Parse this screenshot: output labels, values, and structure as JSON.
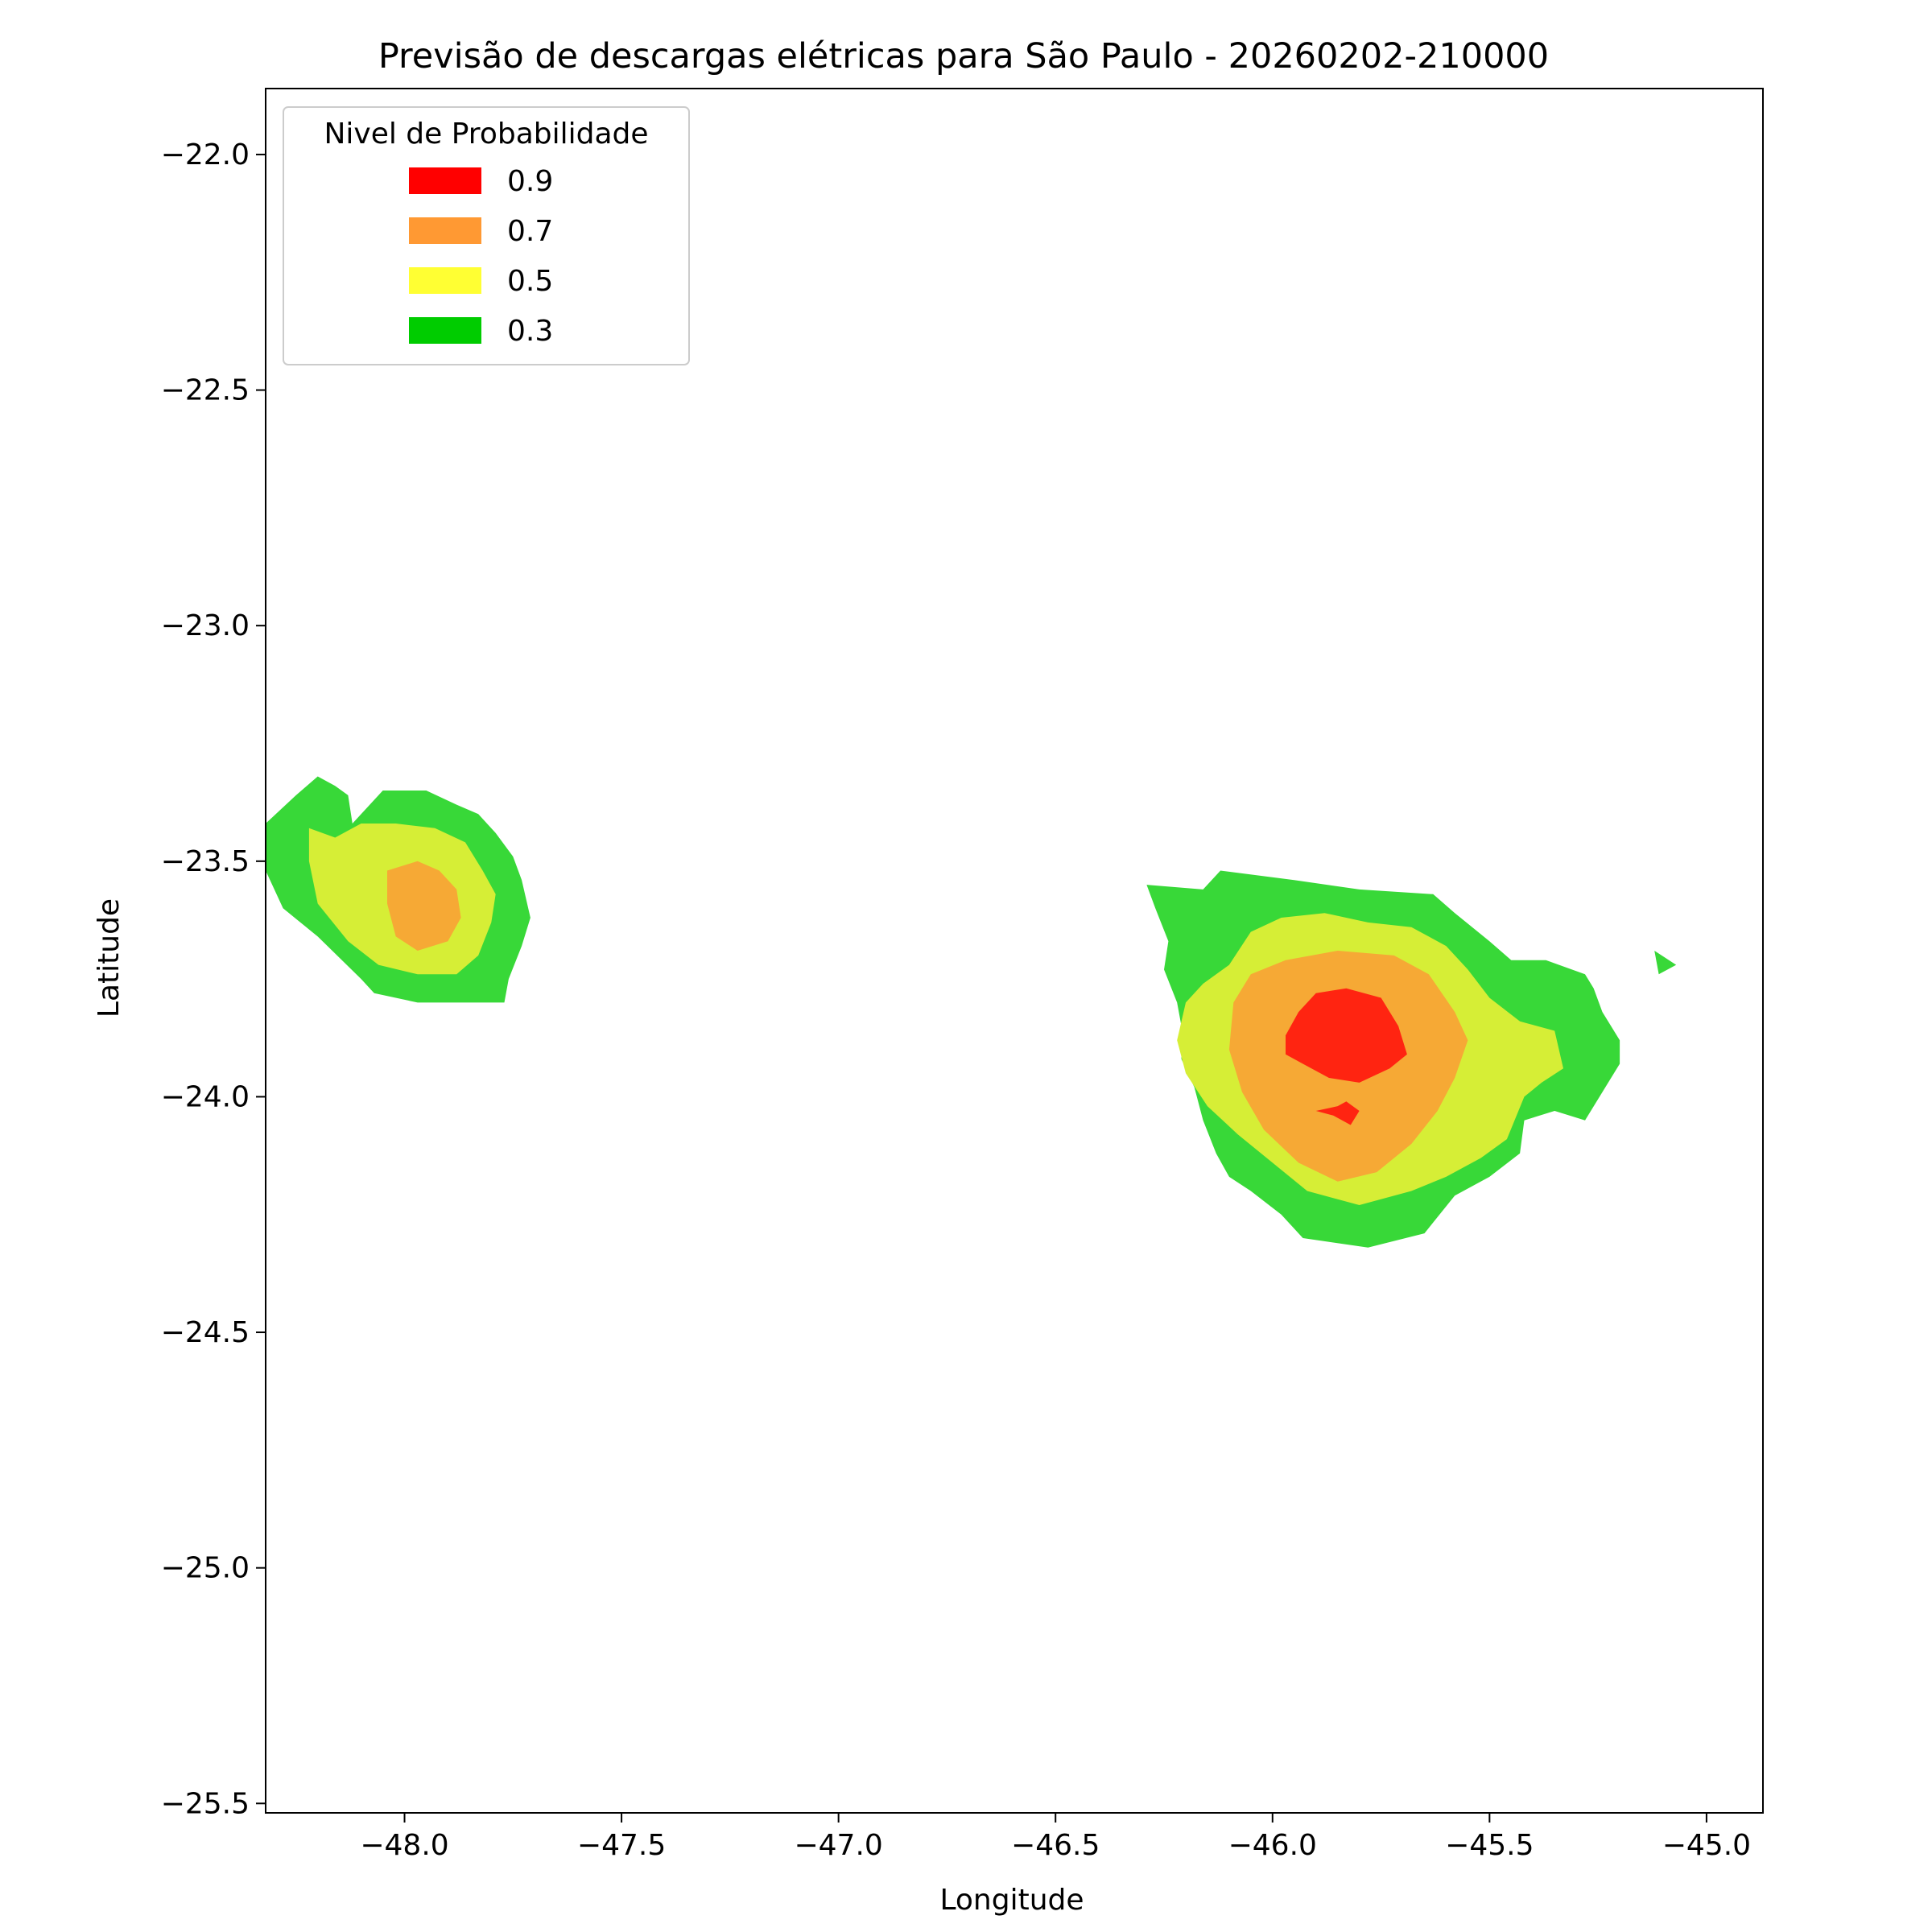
{
  "chart_data": {
    "type": "contour",
    "title": "Previsão de descargas elétricas para São Paulo - 20260202-210000",
    "xlabel": "Longitude",
    "ylabel": "Latitude",
    "xlim": [
      -48.32,
      -44.87
    ],
    "ylim": [
      -25.52,
      -21.86
    ],
    "x_ticks": [
      -48.0,
      -47.5,
      -47.0,
      -46.5,
      -46.0,
      -45.5,
      -45.0
    ],
    "x_tick_labels": [
      "−48.0",
      "−47.5",
      "−47.0",
      "−46.5",
      "−46.0",
      "−45.5",
      "−45.0"
    ],
    "y_ticks": [
      -22.0,
      -22.5,
      -23.0,
      -23.5,
      -24.0,
      -24.5,
      -25.0,
      -25.5
    ],
    "y_tick_labels": [
      "−22.0",
      "−22.5",
      "−23.0",
      "−23.5",
      "−24.0",
      "−24.5",
      "−25.0",
      "−25.5"
    ],
    "grid": false,
    "legend": {
      "title": "Nivel de Probabilidade",
      "placement": "top-left",
      "entries": [
        {
          "label": "0.9",
          "color": "#ff0000"
        },
        {
          "label": "0.7",
          "color": "#ff9933"
        },
        {
          "label": "0.5",
          "color": "#ffff33"
        },
        {
          "label": "0.3",
          "color": "#00cc00"
        }
      ]
    },
    "fill_colors": {
      "0.3": "#38d838",
      "0.5": "#d6ee36",
      "0.7": "#f6a935",
      "0.9": "#ff2411"
    },
    "regions": [
      {
        "level": "0.3",
        "cells": [
          [
            -48.32,
            -23.42
          ],
          [
            -48.25,
            -23.36
          ],
          [
            -48.2,
            -23.32
          ],
          [
            -48.16,
            -23.34
          ],
          [
            -48.13,
            -23.36
          ],
          [
            -48.12,
            -23.42
          ],
          [
            -48.05,
            -23.35
          ],
          [
            -47.95,
            -23.35
          ],
          [
            -47.88,
            -23.38
          ],
          [
            -47.83,
            -23.4
          ],
          [
            -47.79,
            -23.44
          ],
          [
            -47.75,
            -23.49
          ],
          [
            -47.73,
            -23.54
          ],
          [
            -47.71,
            -23.62
          ],
          [
            -47.73,
            -23.68
          ],
          [
            -47.76,
            -23.75
          ],
          [
            -47.77,
            -23.8
          ],
          [
            -47.97,
            -23.8
          ],
          [
            -48.07,
            -23.78
          ],
          [
            -48.1,
            -23.75
          ],
          [
            -48.2,
            -23.66
          ],
          [
            -48.28,
            -23.6
          ],
          [
            -48.32,
            -23.52
          ]
        ]
      },
      {
        "level": "0.3",
        "cells": [
          [
            -46.29,
            -23.55
          ],
          [
            -46.27,
            -23.6
          ],
          [
            -46.24,
            -23.67
          ],
          [
            -46.25,
            -23.73
          ],
          [
            -46.22,
            -23.8
          ],
          [
            -46.21,
            -23.85
          ],
          [
            -46.21,
            -23.92
          ],
          [
            -46.18,
            -23.98
          ],
          [
            -46.16,
            -24.05
          ],
          [
            -46.13,
            -24.12
          ],
          [
            -46.1,
            -24.17
          ],
          [
            -46.05,
            -24.2
          ],
          [
            -45.98,
            -24.25
          ],
          [
            -45.93,
            -24.3
          ],
          [
            -45.78,
            -24.32
          ],
          [
            -45.65,
            -24.29
          ],
          [
            -45.58,
            -24.21
          ],
          [
            -45.5,
            -24.17
          ],
          [
            -45.43,
            -24.12
          ],
          [
            -45.42,
            -24.05
          ],
          [
            -45.35,
            -24.03
          ],
          [
            -45.28,
            -24.05
          ],
          [
            -45.2,
            -23.93
          ],
          [
            -45.2,
            -23.88
          ],
          [
            -45.24,
            -23.82
          ],
          [
            -45.26,
            -23.77
          ],
          [
            -45.28,
            -23.74
          ],
          [
            -45.37,
            -23.71
          ],
          [
            -45.45,
            -23.71
          ],
          [
            -45.5,
            -23.67
          ],
          [
            -45.58,
            -23.61
          ],
          [
            -45.63,
            -23.57
          ],
          [
            -45.8,
            -23.56
          ],
          [
            -45.95,
            -23.54
          ],
          [
            -46.12,
            -23.52
          ],
          [
            -46.16,
            -23.56
          ]
        ]
      },
      {
        "level": "0.3",
        "cells": [
          [
            -45.12,
            -23.69
          ],
          [
            -45.07,
            -23.72
          ],
          [
            -45.11,
            -23.74
          ]
        ]
      },
      {
        "level": "0.5",
        "cells": [
          [
            -48.22,
            -23.43
          ],
          [
            -48.16,
            -23.45
          ],
          [
            -48.1,
            -23.42
          ],
          [
            -48.02,
            -23.42
          ],
          [
            -47.93,
            -23.43
          ],
          [
            -47.86,
            -23.46
          ],
          [
            -47.82,
            -23.52
          ],
          [
            -47.79,
            -23.57
          ],
          [
            -47.8,
            -23.63
          ],
          [
            -47.83,
            -23.7
          ],
          [
            -47.88,
            -23.74
          ],
          [
            -47.97,
            -23.74
          ],
          [
            -48.06,
            -23.72
          ],
          [
            -48.13,
            -23.67
          ],
          [
            -48.2,
            -23.59
          ],
          [
            -48.22,
            -23.5
          ]
        ]
      },
      {
        "level": "0.5",
        "cells": [
          [
            -46.2,
            -23.8
          ],
          [
            -46.16,
            -23.76
          ],
          [
            -46.1,
            -23.72
          ],
          [
            -46.05,
            -23.65
          ],
          [
            -45.98,
            -23.62
          ],
          [
            -45.88,
            -23.61
          ],
          [
            -45.78,
            -23.63
          ],
          [
            -45.68,
            -23.64
          ],
          [
            -45.6,
            -23.68
          ],
          [
            -45.55,
            -23.73
          ],
          [
            -45.5,
            -23.79
          ],
          [
            -45.43,
            -23.84
          ],
          [
            -45.35,
            -23.86
          ],
          [
            -45.33,
            -23.94
          ],
          [
            -45.38,
            -23.97
          ],
          [
            -45.42,
            -24.0
          ],
          [
            -45.46,
            -24.09
          ],
          [
            -45.52,
            -24.13
          ],
          [
            -45.6,
            -24.17
          ],
          [
            -45.68,
            -24.2
          ],
          [
            -45.8,
            -24.23
          ],
          [
            -45.92,
            -24.2
          ],
          [
            -46.0,
            -24.14
          ],
          [
            -46.08,
            -24.08
          ],
          [
            -46.15,
            -24.02
          ],
          [
            -46.2,
            -23.95
          ],
          [
            -46.22,
            -23.88
          ]
        ]
      },
      {
        "level": "0.7",
        "cells": [
          [
            -48.04,
            -23.52
          ],
          [
            -47.97,
            -23.5
          ],
          [
            -47.92,
            -23.52
          ],
          [
            -47.88,
            -23.56
          ],
          [
            -47.87,
            -23.62
          ],
          [
            -47.9,
            -23.67
          ],
          [
            -47.97,
            -23.69
          ],
          [
            -48.02,
            -23.66
          ],
          [
            -48.04,
            -23.59
          ]
        ]
      },
      {
        "level": "0.7",
        "cells": [
          [
            -46.09,
            -23.8
          ],
          [
            -46.05,
            -23.74
          ],
          [
            -45.97,
            -23.71
          ],
          [
            -45.85,
            -23.69
          ],
          [
            -45.72,
            -23.7
          ],
          [
            -45.64,
            -23.74
          ],
          [
            -45.58,
            -23.82
          ],
          [
            -45.55,
            -23.88
          ],
          [
            -45.58,
            -23.96
          ],
          [
            -45.62,
            -24.03
          ],
          [
            -45.68,
            -24.1
          ],
          [
            -45.76,
            -24.16
          ],
          [
            -45.85,
            -24.18
          ],
          [
            -45.94,
            -24.14
          ],
          [
            -46.02,
            -24.07
          ],
          [
            -46.07,
            -23.99
          ],
          [
            -46.1,
            -23.9
          ]
        ]
      },
      {
        "level": "0.9",
        "cells": [
          [
            -45.97,
            -23.87
          ],
          [
            -45.94,
            -23.82
          ],
          [
            -45.9,
            -23.78
          ],
          [
            -45.83,
            -23.77
          ],
          [
            -45.75,
            -23.79
          ],
          [
            -45.71,
            -23.85
          ],
          [
            -45.69,
            -23.91
          ],
          [
            -45.73,
            -23.94
          ],
          [
            -45.8,
            -23.97
          ],
          [
            -45.87,
            -23.96
          ],
          [
            -45.93,
            -23.93
          ],
          [
            -45.97,
            -23.91
          ]
        ]
      },
      {
        "level": "0.9",
        "cells": [
          [
            -45.9,
            -24.03
          ],
          [
            -45.85,
            -24.02
          ],
          [
            -45.83,
            -24.01
          ],
          [
            -45.8,
            -24.03
          ],
          [
            -45.82,
            -24.06
          ],
          [
            -45.86,
            -24.04
          ]
        ]
      }
    ]
  }
}
